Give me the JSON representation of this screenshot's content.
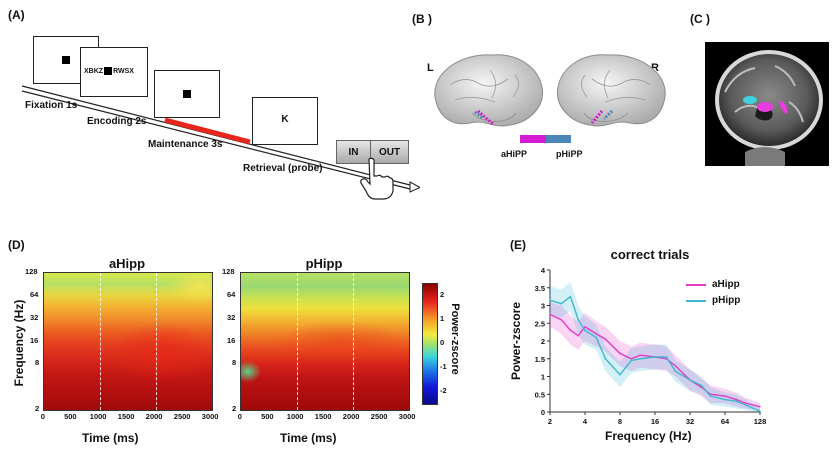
{
  "panels": {
    "a": "(A)",
    "b": "(B )",
    "c": "(C )",
    "d": "(D)",
    "e": "(E)"
  },
  "task": {
    "stimulus_letters": "XBKZ",
    "stimulus_letters2": "RWSX",
    "probe_letter": "K",
    "fixation": "Fixation 1s",
    "encoding": "Encoding 2s",
    "maintenance": "Maintenance 3s",
    "retrieval": "Retrieval (probe)",
    "in_button": "IN",
    "out_button": "OUT",
    "colors": {
      "maintenance_bar": "#e8261c"
    }
  },
  "brain": {
    "left_label": "L",
    "right_label": "R",
    "ahipp_label": "aHiPP",
    "phipp_label": "pHiPP",
    "colors": {
      "ahipp": "#d41bd0",
      "phipp": "#4a86b8"
    }
  },
  "heatmaps": {
    "a_title": "aHipp",
    "p_title": "pHipp",
    "ylabel": "Frequency (Hz)",
    "xlabel": "Time (ms)",
    "yticks": [
      "128",
      "64",
      "32",
      "16",
      "8",
      "2"
    ],
    "xticks": [
      "0",
      "500",
      "1000",
      "1500",
      "2000",
      "2500",
      "3000"
    ],
    "colorbar_label": "Power-zscore",
    "colorbar_ticks": [
      "2",
      "1",
      "0",
      "-1",
      "-2"
    ]
  },
  "chart_data": {
    "type": "line",
    "title": "correct trials",
    "xlabel": "Frequency (Hz)",
    "ylabel": "Power-zscore",
    "x_scale": "log2",
    "x": [
      2,
      2.5,
      3,
      3.5,
      4,
      5,
      6,
      8,
      10,
      12,
      16,
      20,
      24,
      32,
      40,
      48,
      64,
      80,
      96,
      128
    ],
    "xticks": [
      "2",
      "4",
      "8",
      "16",
      "32",
      "64",
      "128"
    ],
    "ylim": [
      0,
      4
    ],
    "yticks": [
      "0",
      "0.5",
      "1",
      "1.5",
      "2",
      "2.5",
      "3",
      "3.5",
      "4"
    ],
    "legend_position": "top-right",
    "series": [
      {
        "name": "aHipp",
        "color": "#e23cc7",
        "values": [
          2.75,
          2.6,
          2.3,
          2.15,
          2.4,
          2.2,
          2.05,
          1.65,
          1.5,
          1.6,
          1.55,
          1.5,
          1.3,
          0.9,
          0.7,
          0.5,
          0.45,
          0.35,
          0.25,
          0.15
        ],
        "band": [
          0.35,
          0.4,
          0.4,
          0.4,
          0.4,
          0.35,
          0.35,
          0.35,
          0.35,
          0.35,
          0.35,
          0.35,
          0.3,
          0.3,
          0.25,
          0.25,
          0.2,
          0.2,
          0.15,
          0.1
        ]
      },
      {
        "name": "pHipp",
        "color": "#3bb8d0",
        "values": [
          3.15,
          3.05,
          3.25,
          2.6,
          2.3,
          2.1,
          1.5,
          1.05,
          1.45,
          1.5,
          1.55,
          1.55,
          1.15,
          0.9,
          0.75,
          0.45,
          0.35,
          0.3,
          0.2,
          0.02
        ],
        "band": [
          0.4,
          0.4,
          0.4,
          0.4,
          0.4,
          0.35,
          0.35,
          0.35,
          0.35,
          0.35,
          0.35,
          0.35,
          0.3,
          0.3,
          0.25,
          0.25,
          0.2,
          0.2,
          0.15,
          0.1
        ]
      }
    ]
  }
}
